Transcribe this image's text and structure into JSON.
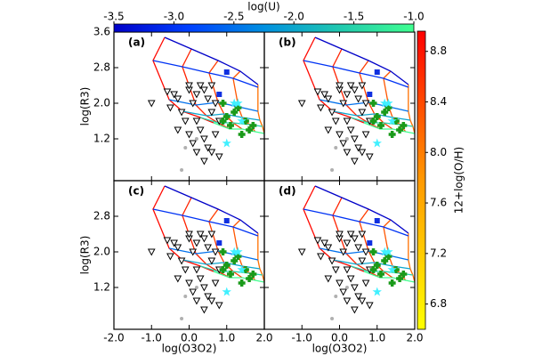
{
  "chart_data": {
    "type": "scatter",
    "panels": [
      {
        "label": "(a)"
      },
      {
        "label": "(b)"
      },
      {
        "label": "(c)"
      },
      {
        "label": "(d)"
      }
    ],
    "x_label": "log(O3O2)",
    "y_label": "log(R3)",
    "xlim": [
      -2.0,
      2.0
    ],
    "xticks": [
      {
        "value": -2.0,
        "label": "-2.0"
      },
      {
        "value": -1.0,
        "label": "-1.0"
      },
      {
        "value": 0.0,
        "label": "0.0"
      },
      {
        "value": 1.0,
        "label": "1.0"
      },
      {
        "value": 2.0,
        "label": "2.0"
      }
    ],
    "ylim": [
      0.26,
      3.6
    ],
    "yticks": [
      1.2,
      {
        "value": 2.0,
        "label": "2.0"
      },
      2.8,
      3.6
    ],
    "u_colorbar": {
      "label": "log(U)",
      "lim": [
        -3.5,
        -1.0
      ],
      "ticks": [
        -3.5,
        {
          "value": -3.0,
          "label": "-3.0"
        },
        -2.5,
        {
          "value": -2.0,
          "label": "-2.0"
        },
        -1.5,
        {
          "value": -1.0,
          "label": "-1.0"
        }
      ],
      "colormap": [
        "#0000c8",
        "#0040ff",
        "#0090e0",
        "#20c8b0",
        "#40ff90"
      ]
    },
    "z_colorbar": {
      "label": "12+log(O/H)",
      "lim": [
        6.6,
        8.96
      ],
      "ticks": [
        6.8,
        7.2,
        7.6,
        {
          "value": 8.0,
          "label": "8.0"
        },
        8.4,
        8.8
      ],
      "colormap": [
        "#ffff00",
        "#ff9900",
        "#ff0000"
      ]
    },
    "models": {
      "logU": [
        -3.5,
        -3.0,
        -2.5,
        -2.0,
        -1.5,
        -1.0
      ],
      "oh": [
        8.9,
        8.7,
        8.5,
        8.3,
        8.1
      ],
      "x": [
        [
          -0.65,
          0.06,
          0.77,
          1.36,
          1.83
        ],
        [
          -0.96,
          -0.18,
          0.53,
          1.17,
          1.83
        ],
        [
          -0.53,
          0.18,
          0.77,
          1.31,
          1.83
        ],
        [
          -0.18,
          0.46,
          0.93,
          1.41,
          1.88
        ],
        [
          0.3,
          0.77,
          1.17,
          1.6,
          1.95
        ],
        [
          0.65,
          1.08,
          1.41,
          1.76,
          2.0
        ]
      ],
      "y": [
        [
          3.48,
          3.22,
          2.96,
          2.72,
          2.42
        ],
        [
          2.96,
          2.82,
          2.68,
          2.56,
          2.36
        ],
        [
          2.08,
          1.96,
          2.02,
          1.92,
          1.82
        ],
        [
          1.82,
          1.72,
          1.76,
          1.68,
          1.62
        ],
        [
          1.68,
          1.56,
          1.56,
          1.52,
          1.48
        ],
        [
          1.56,
          1.42,
          1.42,
          1.36,
          1.32
        ]
      ]
    },
    "series": [
      {
        "marker": "triangle",
        "color": "#000000",
        "x": [
          -1.0,
          -0.58,
          -0.5,
          -0.3,
          -0.2,
          0.0,
          0.0,
          0.1,
          0.2,
          0.3,
          0.4,
          0.5,
          0.2,
          0.3,
          0.4,
          0.5,
          0.6,
          0.1,
          0.0,
          0.7,
          0.8,
          -0.1,
          0.6,
          0.4,
          0.8,
          -0.3,
          0.2,
          0.6,
          0.7,
          -0.4
        ],
        "y": [
          2.0,
          2.26,
          1.9,
          2.1,
          1.8,
          2.3,
          2.4,
          2.0,
          2.2,
          2.4,
          2.3,
          2.1,
          1.6,
          1.4,
          1.2,
          1.0,
          0.9,
          1.1,
          1.3,
          1.3,
          1.6,
          1.6,
          1.8,
          0.7,
          0.8,
          1.4,
          0.9,
          2.4,
          2.0,
          2.2
        ]
      },
      {
        "marker": "cross",
        "color": "#1a9a1a",
        "x": [
          0.9,
          1.0,
          1.2,
          1.5,
          1.6,
          1.1,
          1.3,
          1.7,
          0.9,
          1.4
        ],
        "y": [
          2.0,
          1.7,
          1.8,
          1.6,
          1.4,
          1.5,
          1.9,
          1.5,
          1.6,
          1.3
        ]
      },
      {
        "marker": "star",
        "color": "#40f0ff",
        "x": [
          1.0,
          1.3,
          1.4,
          1.2
        ],
        "y": [
          1.1,
          2.0,
          1.6,
          2.0
        ]
      },
      {
        "marker": "square",
        "color": "#1030e0",
        "x": [
          1.0,
          0.8
        ],
        "y": [
          2.7,
          2.2
        ]
      },
      {
        "marker": "dot",
        "color": "#b0b0b0",
        "x": [
          -0.2,
          0.2,
          -0.1
        ],
        "y": [
          0.5,
          1.2,
          1.0
        ]
      }
    ]
  }
}
